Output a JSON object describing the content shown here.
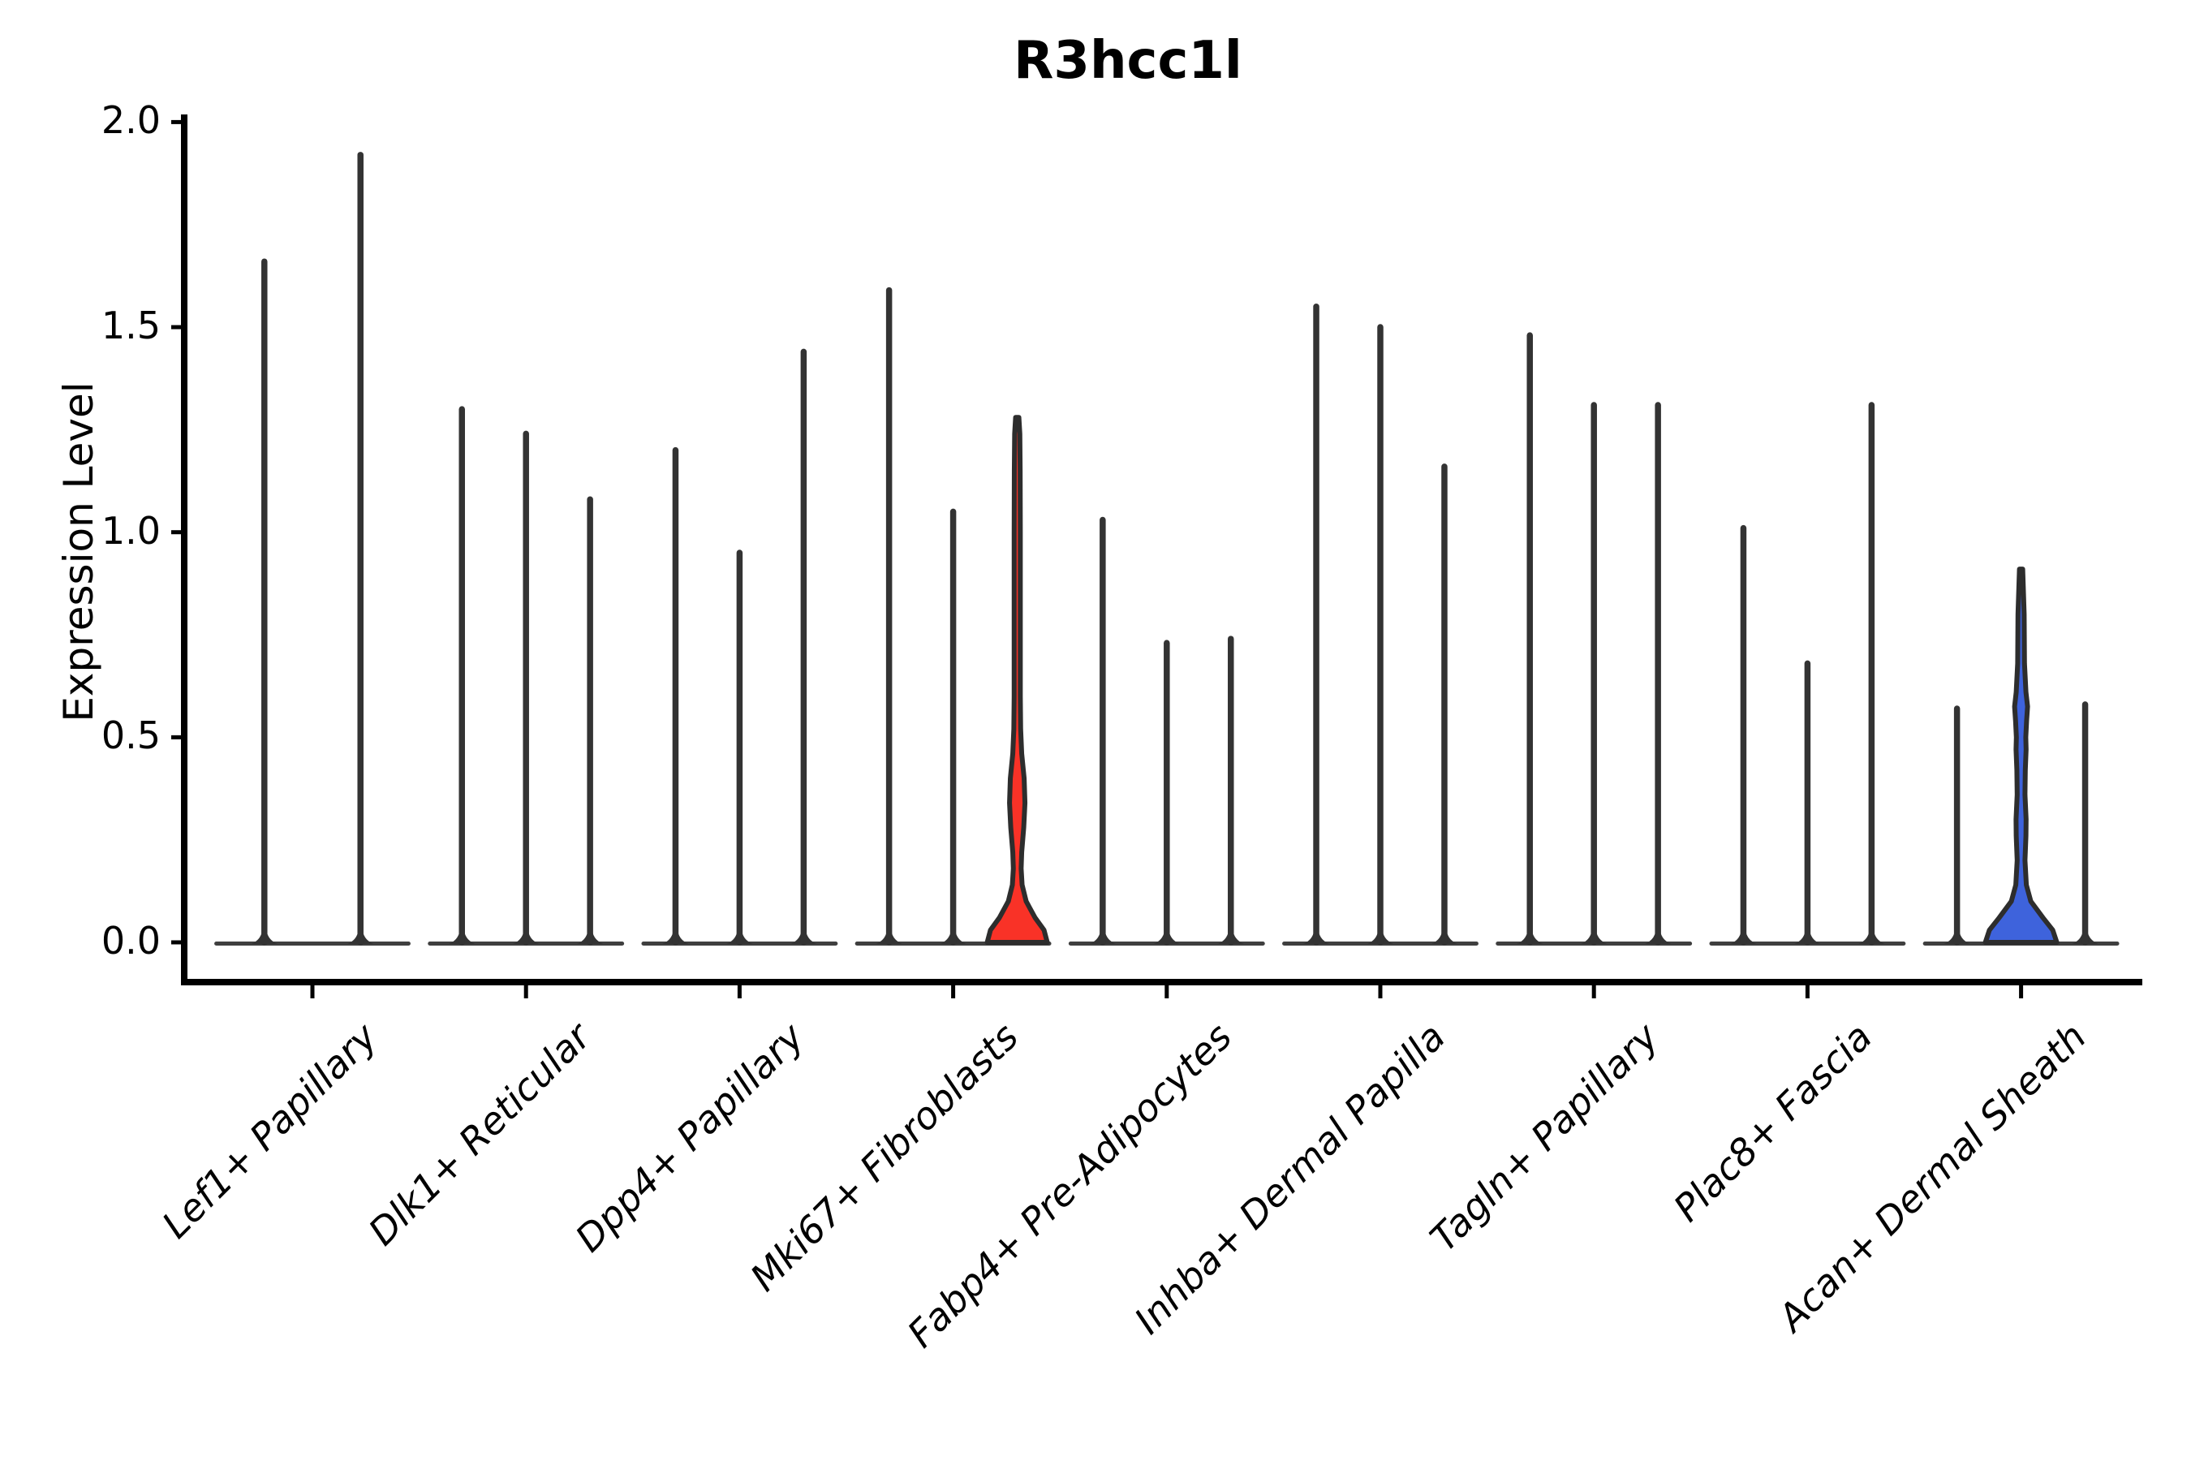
{
  "title": "R3hcc1l",
  "y_axis": {
    "label": "Expression Level",
    "tick_labels": [
      "0.0",
      "0.5",
      "1.0",
      "1.5",
      "2.0"
    ],
    "tick_values": [
      0.0,
      0.5,
      1.0,
      1.5,
      2.0
    ]
  },
  "colors": {
    "background": "#ffffff",
    "axis": "#000000",
    "stem": "#333333",
    "violin_outline": "#2d2d2d",
    "baseline": "#3f3f3f",
    "red_fill": "#F93227",
    "blue_fill": "#3E63DC",
    "text": "#000000"
  },
  "chart_data": {
    "type": "violin",
    "title": "R3hcc1l",
    "xlabel": "",
    "ylabel": "Expression Level",
    "ylim": [
      -0.1,
      2.02
    ],
    "yticks": [
      0.0,
      0.5,
      1.0,
      1.5,
      2.0
    ],
    "ytick_labels": [
      "0.0",
      "0.5",
      "1.0",
      "1.5",
      "2.0"
    ],
    "grid": false,
    "legend": "none",
    "note": "Violin plot of expression level per cluster; most violins are collapsed to near-zero-width spikes (peak = max expression reached by the spike). Two violins are filled: red in Mki67+ Fibroblasts (3rd) and blue in Acan+ Dermal Sheath (2nd); their 'profile' lists [expression_value, half_width_px] density outlines.",
    "groups": [
      {
        "label": "Lef1+ Papillary",
        "violins": [
          {
            "peak": 1.66,
            "style": "collapsed"
          },
          {
            "peak": 1.92,
            "style": "collapsed"
          }
        ]
      },
      {
        "label": "Dlk1+ Reticular",
        "violins": [
          {
            "peak": 1.3,
            "style": "collapsed"
          },
          {
            "peak": 1.24,
            "style": "collapsed"
          },
          {
            "peak": 1.08,
            "style": "collapsed"
          }
        ]
      },
      {
        "label": "Dpp4+ Papillary",
        "violins": [
          {
            "peak": 1.2,
            "style": "collapsed"
          },
          {
            "peak": 0.95,
            "style": "collapsed"
          },
          {
            "peak": 1.44,
            "style": "collapsed"
          }
        ]
      },
      {
        "label": "Mki67+ Fibroblasts",
        "violins": [
          {
            "peak": 1.59,
            "style": "collapsed"
          },
          {
            "peak": 1.05,
            "style": "collapsed"
          },
          {
            "peak": 1.28,
            "style": "filled",
            "fill": "#F93227",
            "profile": [
              [
                0.0,
                37
              ],
              [
                0.03,
                33
              ],
              [
                0.06,
                22
              ],
              [
                0.1,
                11
              ],
              [
                0.14,
                6.0
              ],
              [
                0.18,
                4.8
              ],
              [
                0.22,
                5.5
              ],
              [
                0.28,
                8.0
              ],
              [
                0.34,
                9.5
              ],
              [
                0.4,
                8.5
              ],
              [
                0.46,
                5.5
              ],
              [
                0.52,
                4.2
              ],
              [
                0.6,
                3.8
              ],
              [
                0.8,
                3.8
              ],
              [
                1.0,
                3.8
              ],
              [
                1.15,
                3.6
              ],
              [
                1.24,
                3.2
              ],
              [
                1.28,
                2.0
              ]
            ]
          }
        ]
      },
      {
        "label": "Fabp4+ Pre-Adipocytes",
        "violins": [
          {
            "peak": 1.03,
            "style": "collapsed"
          },
          {
            "peak": 0.73,
            "style": "collapsed"
          },
          {
            "peak": 0.74,
            "style": "collapsed"
          }
        ]
      },
      {
        "label": "Inhba+ Dermal Papilla",
        "violins": [
          {
            "peak": 1.55,
            "style": "collapsed"
          },
          {
            "peak": 1.5,
            "style": "collapsed"
          },
          {
            "peak": 1.16,
            "style": "collapsed"
          }
        ]
      },
      {
        "label": "Tagln+ Papillary",
        "violins": [
          {
            "peak": 1.48,
            "style": "collapsed"
          },
          {
            "peak": 1.31,
            "style": "collapsed"
          },
          {
            "peak": 1.31,
            "style": "collapsed"
          }
        ]
      },
      {
        "label": "Plac8+ Fascia",
        "violins": [
          {
            "peak": 1.01,
            "style": "collapsed"
          },
          {
            "peak": 0.68,
            "style": "collapsed"
          },
          {
            "peak": 1.31,
            "style": "collapsed"
          }
        ]
      },
      {
        "label": "Acan+ Dermal Sheath",
        "violins": [
          {
            "peak": 0.57,
            "style": "collapsed"
          },
          {
            "peak": 0.91,
            "style": "filled",
            "fill": "#3E63DC",
            "profile": [
              [
                0.0,
                44
              ],
              [
                0.03,
                39
              ],
              [
                0.06,
                27
              ],
              [
                0.1,
                12
              ],
              [
                0.14,
                6.5
              ],
              [
                0.2,
                4.8
              ],
              [
                0.26,
                6.0
              ],
              [
                0.3,
                6.2
              ],
              [
                0.36,
                4.8
              ],
              [
                0.42,
                5.2
              ],
              [
                0.47,
                6.2
              ],
              [
                0.5,
                5.8
              ],
              [
                0.54,
                6.8
              ],
              [
                0.575,
                8.0
              ],
              [
                0.61,
                6.0
              ],
              [
                0.68,
                4.2
              ],
              [
                0.8,
                3.8
              ],
              [
                0.91,
                2.0
              ]
            ]
          },
          {
            "peak": 0.58,
            "style": "collapsed"
          }
        ]
      }
    ]
  }
}
